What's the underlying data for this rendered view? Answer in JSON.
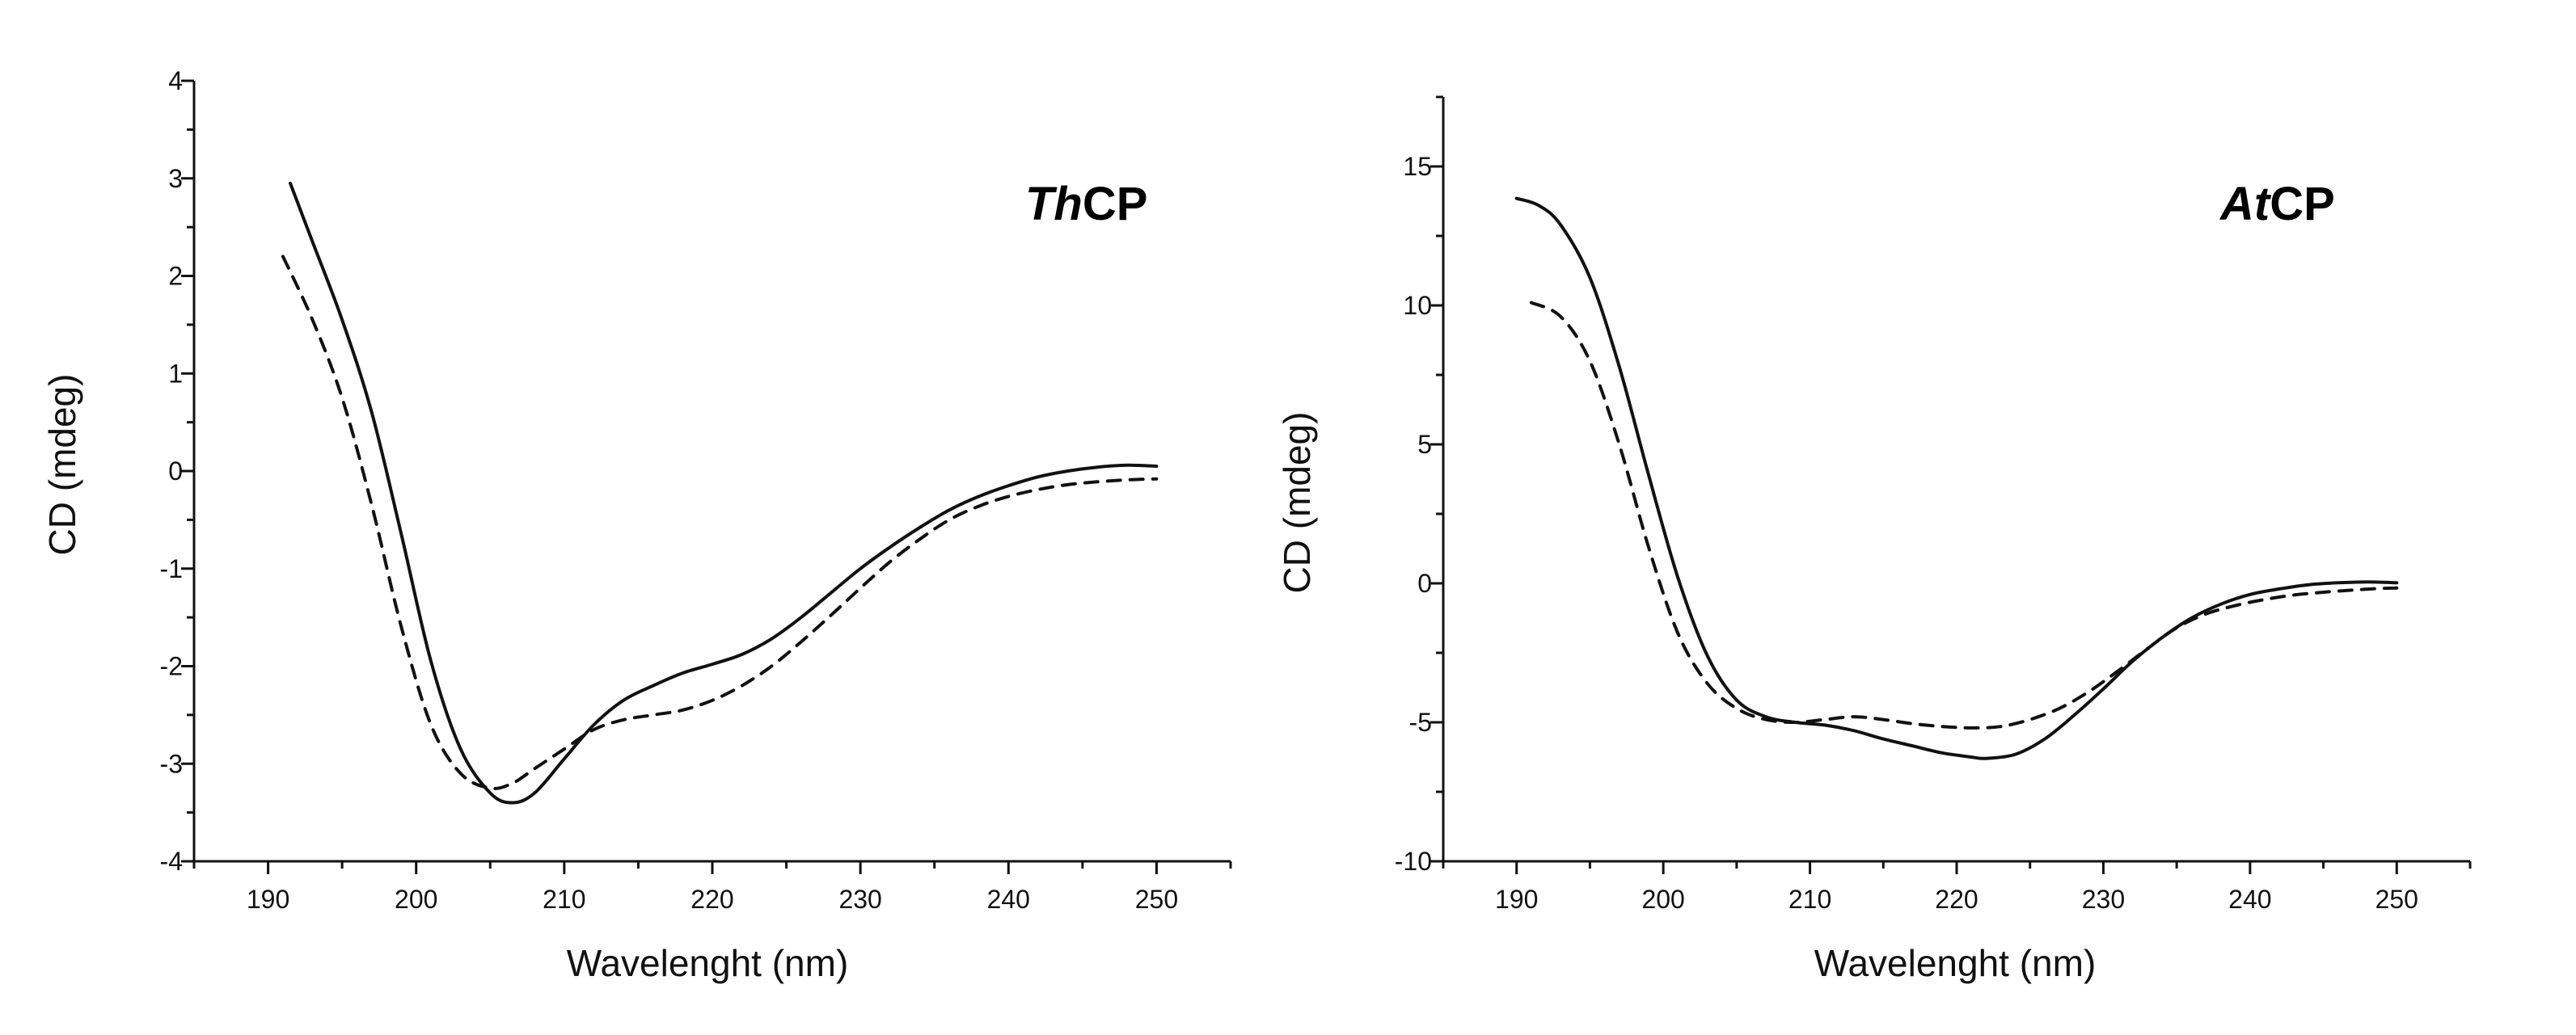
{
  "chart_data": [
    {
      "type": "line",
      "title_italic": "Th",
      "title_rest": "CP",
      "xlabel": "Wavelenght (nm)",
      "ylabel": "CD (mdeg)",
      "xlim": [
        185,
        255
      ],
      "ylim": [
        -4,
        4
      ],
      "xticks": [
        190,
        200,
        210,
        220,
        230,
        240,
        250
      ],
      "yticks": [
        -4,
        -3,
        -2,
        -1,
        0,
        1,
        2,
        3,
        4
      ],
      "series": [
        {
          "name": "solid",
          "color": "#111111",
          "dash": "none",
          "x": [
            191.5,
            193,
            195,
            197,
            199,
            201,
            203,
            205,
            206.5,
            208,
            210,
            212,
            214,
            216,
            218,
            220,
            222,
            224,
            226,
            228,
            230,
            232,
            234,
            236,
            238,
            240,
            242,
            244,
            246,
            248,
            250
          ],
          "y": [
            2.95,
            2.35,
            1.55,
            0.6,
            -0.65,
            -1.95,
            -2.85,
            -3.3,
            -3.4,
            -3.3,
            -2.95,
            -2.6,
            -2.35,
            -2.2,
            -2.07,
            -1.98,
            -1.88,
            -1.72,
            -1.5,
            -1.25,
            -1.0,
            -0.78,
            -0.58,
            -0.4,
            -0.26,
            -0.15,
            -0.06,
            0.0,
            0.04,
            0.06,
            0.05
          ]
        },
        {
          "name": "dashed",
          "color": "#111111",
          "dash": "16,12",
          "x": [
            191,
            193,
            195,
            197,
            199,
            201,
            203,
            205,
            206.5,
            208,
            210,
            212,
            214,
            216,
            218,
            220,
            222,
            224,
            226,
            228,
            230,
            232,
            234,
            236,
            238,
            240,
            242,
            244,
            246,
            248,
            250
          ],
          "y": [
            2.2,
            1.55,
            0.75,
            -0.35,
            -1.6,
            -2.6,
            -3.1,
            -3.25,
            -3.2,
            -3.05,
            -2.85,
            -2.65,
            -2.55,
            -2.5,
            -2.45,
            -2.35,
            -2.2,
            -2.0,
            -1.75,
            -1.48,
            -1.2,
            -0.93,
            -0.7,
            -0.5,
            -0.36,
            -0.26,
            -0.19,
            -0.14,
            -0.11,
            -0.09,
            -0.08
          ]
        }
      ]
    },
    {
      "type": "line",
      "title_italic": "At",
      "title_rest": "CP",
      "xlabel": "Wavelenght (nm)",
      "ylabel": "CD (mdeg)",
      "xlim": [
        185,
        255
      ],
      "ylim": [
        -10,
        17.5
      ],
      "xticks": [
        190,
        200,
        210,
        220,
        230,
        240,
        250
      ],
      "yticks": [
        -10,
        -5,
        0,
        5,
        10,
        15
      ],
      "series": [
        {
          "name": "solid",
          "color": "#111111",
          "dash": "none",
          "x": [
            190,
            191.5,
            193,
            195,
            197,
            199,
            201,
            203,
            205,
            207,
            209,
            211,
            213,
            215,
            217,
            219,
            221,
            222,
            224,
            226,
            228,
            230,
            232,
            234,
            236,
            238,
            240,
            242,
            244,
            246,
            248,
            250
          ],
          "y": [
            13.85,
            13.6,
            12.9,
            11.0,
            7.8,
            3.9,
            0.2,
            -2.6,
            -4.2,
            -4.8,
            -5.0,
            -5.1,
            -5.3,
            -5.6,
            -5.85,
            -6.1,
            -6.25,
            -6.3,
            -6.15,
            -5.6,
            -4.75,
            -3.8,
            -2.8,
            -1.95,
            -1.25,
            -0.75,
            -0.4,
            -0.2,
            -0.05,
            0.02,
            0.05,
            0.02
          ]
        },
        {
          "name": "dashed",
          "color": "#111111",
          "dash": "16,12",
          "x": [
            191,
            193,
            195,
            197,
            199,
            201,
            203,
            205,
            207,
            209,
            211,
            213,
            215,
            217,
            219,
            221,
            223,
            225,
            227,
            229,
            231,
            233,
            235,
            237,
            239,
            241,
            243,
            245,
            247,
            249,
            250
          ],
          "y": [
            10.1,
            9.6,
            8.0,
            5.0,
            1.3,
            -1.8,
            -3.6,
            -4.5,
            -4.9,
            -5.0,
            -4.9,
            -4.8,
            -4.9,
            -5.05,
            -5.15,
            -5.2,
            -5.15,
            -4.9,
            -4.5,
            -3.9,
            -3.15,
            -2.35,
            -1.6,
            -1.1,
            -0.8,
            -0.58,
            -0.42,
            -0.32,
            -0.24,
            -0.18,
            -0.17
          ]
        }
      ]
    }
  ]
}
